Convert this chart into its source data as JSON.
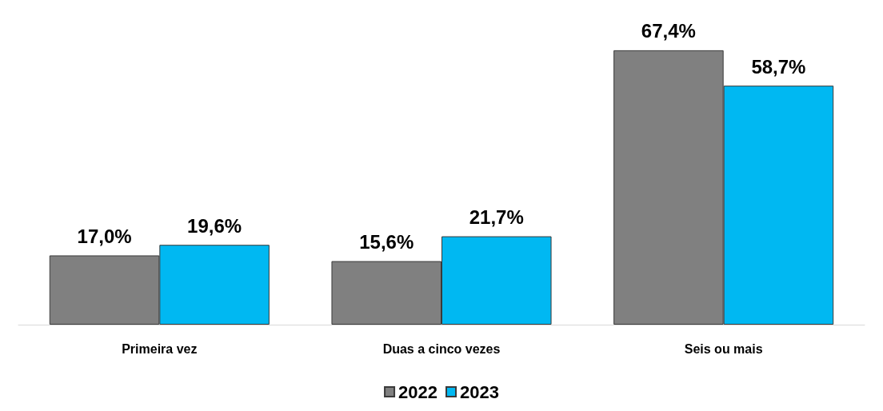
{
  "chart_data": {
    "type": "bar",
    "categories": [
      "Primeira vez",
      "Duas a cinco vezes",
      "Seis ou mais"
    ],
    "series": [
      {
        "name": "2022",
        "color": "#808080",
        "values": [
          17.0,
          15.6,
          67.4
        ],
        "value_labels": [
          "17,0%",
          "15,6%",
          "67,4%"
        ]
      },
      {
        "name": "2023",
        "color": "#00b8f2",
        "values": [
          19.6,
          21.7,
          58.7
        ],
        "value_labels": [
          "19,6%",
          "21,7%",
          "58,7%"
        ]
      }
    ],
    "legend": "bottom"
  }
}
